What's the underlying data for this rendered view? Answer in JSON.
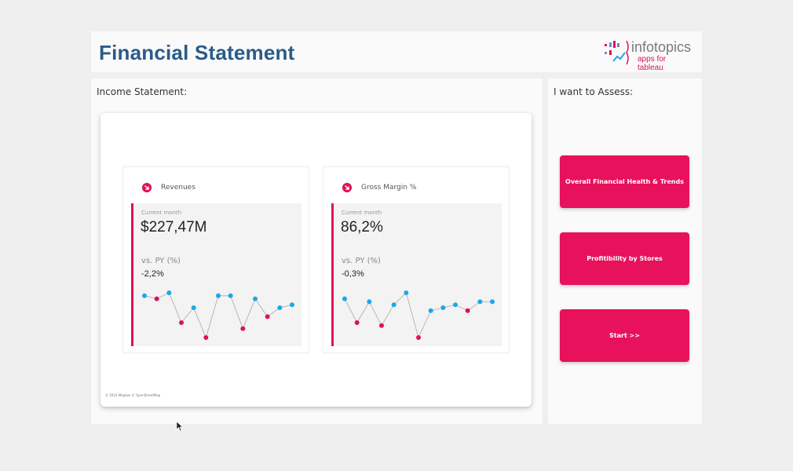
{
  "header": {
    "title": "Financial Statement",
    "logo": {
      "name": "infotopics",
      "tagline": "apps for tableau"
    }
  },
  "income_panel": {
    "title": "Income Statement:",
    "copyright": "© 2023 Mapbox © OpenStreetMap",
    "kpis": [
      {
        "name": "Revenues",
        "trend_icon": "trend-down-icon",
        "current_label": "Current month",
        "value": "$227,47M",
        "vs_label": "vs. PY (%)",
        "vs_value": "-2,2%",
        "sparkline": {
          "trend": [
            7,
            6.5,
            7.5,
            2.5,
            5,
            0,
            7,
            7,
            1.5,
            6.5,
            3.5,
            5,
            5.5
          ],
          "colors": [
            "blue",
            "pink",
            "blue",
            "pink",
            "blue",
            "pink",
            "blue",
            "blue",
            "pink",
            "blue",
            "pink",
            "blue",
            "blue"
          ]
        }
      },
      {
        "name": "Gross Margin %",
        "trend_icon": "trend-down-icon",
        "current_label": "Current month",
        "value": "86,2%",
        "vs_label": "vs. PY (%)",
        "vs_value": "-0,3%",
        "sparkline": {
          "trend": [
            6.5,
            2.5,
            6,
            2,
            5.5,
            7.5,
            0,
            4.5,
            5,
            5.5,
            4.5,
            6,
            6
          ],
          "colors": [
            "blue",
            "pink",
            "blue",
            "pink",
            "blue",
            "blue",
            "pink",
            "blue",
            "blue",
            "blue",
            "pink",
            "blue",
            "blue"
          ]
        }
      }
    ]
  },
  "assess_panel": {
    "title": "I want to Assess:",
    "buttons": [
      {
        "label": "Overall Financial Health & Trends"
      },
      {
        "label": "Profitibility by Stores"
      },
      {
        "label": "Start >>"
      }
    ]
  },
  "colors": {
    "accent": "#e8115b",
    "title_blue": "#2a5b8a",
    "point_blue": "#1aa7ec",
    "point_pink": "#e0105a"
  }
}
